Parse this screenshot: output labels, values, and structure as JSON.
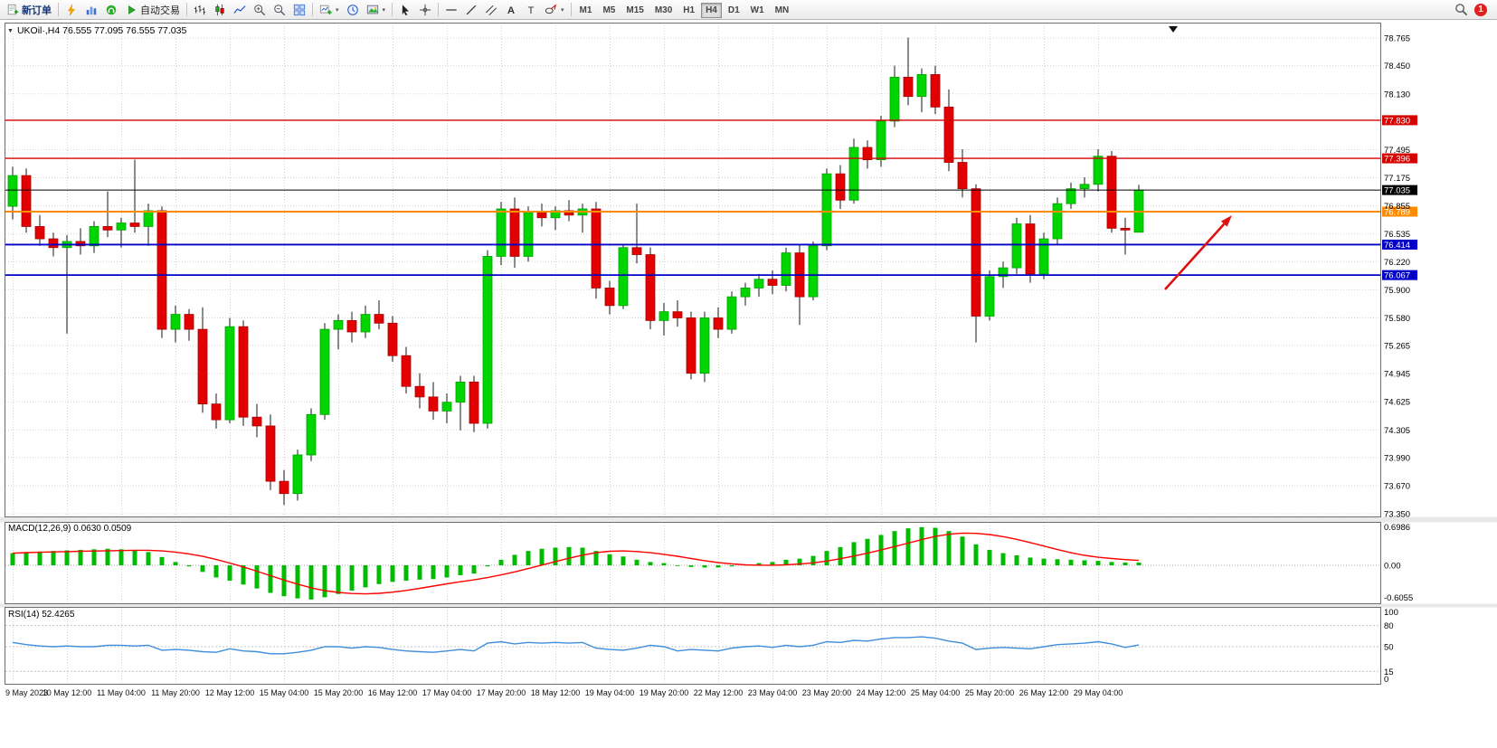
{
  "toolbar": {
    "new_order_label": "新订单",
    "auto_trading_label": "自动交易",
    "timeframes": [
      "M1",
      "M5",
      "M15",
      "M30",
      "H1",
      "H4",
      "D1",
      "W1",
      "MN"
    ],
    "active_timeframe": "H4",
    "notification_count": "1",
    "icons": {
      "new-order-icon": "document-plus",
      "lightning-icon": "bolt",
      "market-watch-icon": "blue-columns",
      "headset-icon": "green-circle",
      "auto-trading-icon": "play-triangle",
      "bar-chart-icon": "ohlc-bars",
      "candlestick-icon": "candles",
      "line-chart-icon": "polyline",
      "zoom-in-icon": "magnifier-plus",
      "zoom-out-icon": "magnifier-minus",
      "tile-windows-icon": "window-grid",
      "new-chart-icon": "chart-plus",
      "clock-icon": "clock",
      "template-icon": "picture",
      "cursor-icon": "pointer-arrow",
      "crosshair-icon": "cross",
      "hline-icon": "horizontal-line",
      "trendline-icon": "diagonal-line",
      "channel-icon": "parallel-lines",
      "text-icon": "A",
      "text-label-icon": "T",
      "shapes-icon": "ellipse",
      "search-icon": "magnifier",
      "one-click-expander-icon": "triangle-down",
      "chart-shift-icon": "triangle-down"
    }
  },
  "chart_header": {
    "symbol_info": "UKOil·,H4  76.555 77.095 76.555 77.035"
  },
  "indicators": {
    "macd_label": "MACD(12,26,9) 0.0630 0.0509",
    "macd_scale": [
      "0.6986",
      "0.00",
      "-0.6055"
    ],
    "rsi_label": "RSI(14) 52.4265",
    "rsi_scale": [
      "100",
      "80",
      "50",
      "15",
      "0"
    ]
  },
  "price_scale": {
    "ticks": [
      "78.765",
      "78.450",
      "78.130",
      "77.495",
      "77.175",
      "76.855",
      "76.535",
      "76.220",
      "75.900",
      "75.580",
      "75.265",
      "74.945",
      "74.625",
      "74.305",
      "73.990",
      "73.670",
      "73.350"
    ]
  },
  "time_axis": {
    "labels": [
      "9 May 2023",
      "10 May 12:00",
      "11 May 04:00",
      "11 May 20:00",
      "12 May 12:00",
      "15 May 04:00",
      "15 May 20:00",
      "16 May 12:00",
      "17 May 04:00",
      "17 May 20:00",
      "18 May 12:00",
      "19 May 04:00",
      "19 May 20:00",
      "22 May 12:00",
      "23 May 04:00",
      "23 May 20:00",
      "24 May 12:00",
      "25 May 04:00",
      "25 May 20:00",
      "26 May 12:00",
      "29 May 04:00"
    ],
    "bars_per_label": 4
  },
  "chart_data": {
    "type": "candlestick",
    "symbol": "UKOil",
    "timeframe": "H4",
    "current_ohlc": {
      "open": 76.555,
      "high": 77.095,
      "low": 76.555,
      "close": 77.035
    },
    "ylim": [
      73.33,
      78.91
    ],
    "ohlc": [
      [
        76.85,
        77.3,
        76.7,
        77.2
      ],
      [
        77.2,
        77.28,
        76.55,
        76.62
      ],
      [
        76.62,
        76.75,
        76.4,
        76.48
      ],
      [
        76.48,
        76.55,
        76.28,
        76.38
      ],
      [
        76.38,
        76.52,
        75.4,
        76.45
      ],
      [
        76.45,
        76.6,
        76.3,
        76.4
      ],
      [
        76.4,
        76.68,
        76.32,
        76.62
      ],
      [
        76.62,
        77.02,
        76.5,
        76.58
      ],
      [
        76.58,
        76.72,
        76.38,
        76.66
      ],
      [
        76.66,
        77.38,
        76.55,
        76.62
      ],
      [
        76.62,
        76.88,
        76.4,
        76.8
      ],
      [
        76.8,
        76.85,
        75.35,
        75.45
      ],
      [
        75.45,
        75.72,
        75.3,
        75.62
      ],
      [
        75.62,
        75.68,
        75.32,
        75.45
      ],
      [
        75.45,
        75.7,
        74.5,
        74.6
      ],
      [
        74.6,
        74.72,
        74.32,
        74.42
      ],
      [
        74.42,
        75.58,
        74.38,
        75.48
      ],
      [
        75.48,
        75.55,
        74.35,
        74.45
      ],
      [
        74.45,
        74.6,
        74.22,
        74.35
      ],
      [
        74.35,
        74.48,
        73.62,
        73.72
      ],
      [
        73.72,
        73.85,
        73.45,
        73.58
      ],
      [
        73.58,
        74.08,
        73.5,
        74.02
      ],
      [
        74.02,
        74.55,
        73.95,
        74.48
      ],
      [
        74.48,
        75.52,
        74.42,
        75.45
      ],
      [
        75.45,
        75.62,
        75.22,
        75.55
      ],
      [
        75.55,
        75.65,
        75.3,
        75.42
      ],
      [
        75.42,
        75.72,
        75.35,
        75.62
      ],
      [
        75.62,
        75.78,
        75.45,
        75.52
      ],
      [
        75.52,
        75.6,
        75.08,
        75.15
      ],
      [
        75.15,
        75.25,
        74.72,
        74.8
      ],
      [
        74.8,
        74.95,
        74.55,
        74.68
      ],
      [
        74.68,
        74.85,
        74.42,
        74.52
      ],
      [
        74.52,
        74.72,
        74.38,
        74.62
      ],
      [
        74.62,
        74.92,
        74.3,
        74.85
      ],
      [
        74.85,
        74.92,
        74.28,
        74.38
      ],
      [
        74.38,
        76.35,
        74.32,
        76.28
      ],
      [
        76.28,
        76.9,
        76.18,
        76.82
      ],
      [
        76.82,
        76.95,
        76.15,
        76.28
      ],
      [
        76.28,
        76.85,
        76.22,
        76.78
      ],
      [
        76.78,
        76.88,
        76.62,
        76.72
      ],
      [
        76.72,
        76.85,
        76.58,
        76.8
      ],
      [
        76.8,
        76.92,
        76.68,
        76.75
      ],
      [
        76.75,
        76.88,
        76.55,
        76.82
      ],
      [
        76.82,
        76.9,
        75.8,
        75.92
      ],
      [
        75.92,
        76.0,
        75.62,
        75.72
      ],
      [
        75.72,
        76.42,
        75.68,
        76.38
      ],
      [
        76.38,
        76.88,
        76.2,
        76.3
      ],
      [
        76.3,
        76.38,
        75.45,
        75.55
      ],
      [
        75.55,
        75.75,
        75.38,
        75.65
      ],
      [
        75.65,
        75.78,
        75.48,
        75.58
      ],
      [
        75.58,
        75.65,
        74.88,
        74.95
      ],
      [
        74.95,
        75.65,
        74.85,
        75.58
      ],
      [
        75.58,
        75.7,
        75.35,
        75.45
      ],
      [
        75.45,
        75.88,
        75.4,
        75.82
      ],
      [
        75.82,
        75.98,
        75.72,
        75.92
      ],
      [
        75.92,
        76.08,
        75.82,
        76.02
      ],
      [
        76.02,
        76.12,
        75.85,
        75.95
      ],
      [
        75.95,
        76.38,
        75.88,
        76.32
      ],
      [
        76.32,
        76.42,
        75.5,
        75.82
      ],
      [
        75.82,
        76.45,
        75.78,
        76.4
      ],
      [
        76.4,
        77.28,
        76.35,
        77.22
      ],
      [
        77.22,
        77.32,
        76.82,
        76.92
      ],
      [
        76.92,
        77.62,
        76.88,
        77.52
      ],
      [
        77.52,
        77.6,
        77.28,
        77.38
      ],
      [
        77.38,
        77.88,
        77.3,
        77.82
      ],
      [
        77.82,
        78.45,
        77.75,
        78.32
      ],
      [
        78.32,
        78.77,
        78.0,
        78.1
      ],
      [
        78.1,
        78.42,
        77.92,
        78.35
      ],
      [
        78.35,
        78.45,
        77.9,
        77.98
      ],
      [
        77.98,
        78.18,
        77.25,
        77.35
      ],
      [
        77.35,
        77.5,
        76.95,
        77.05
      ],
      [
        77.05,
        77.1,
        75.3,
        75.6
      ],
      [
        75.6,
        76.12,
        75.55,
        76.05
      ],
      [
        76.05,
        76.22,
        75.92,
        76.15
      ],
      [
        76.15,
        76.72,
        76.08,
        76.65
      ],
      [
        76.65,
        76.75,
        75.98,
        76.08
      ],
      [
        76.08,
        76.55,
        76.02,
        76.48
      ],
      [
        76.48,
        76.95,
        76.42,
        76.88
      ],
      [
        76.88,
        77.12,
        76.82,
        77.05
      ],
      [
        77.05,
        77.18,
        76.95,
        77.1
      ],
      [
        77.1,
        77.5,
        77.02,
        77.42
      ],
      [
        77.42,
        77.48,
        76.55,
        76.6
      ],
      [
        76.6,
        76.72,
        76.3,
        76.58
      ],
      [
        76.555,
        77.095,
        76.555,
        77.035
      ]
    ],
    "horizontal_lines": [
      {
        "price": 77.83,
        "label": "77.830",
        "color": "#d60000",
        "width": 1.4
      },
      {
        "price": 77.396,
        "label": "77.396",
        "color": "#d60000",
        "width": 1.4
      },
      {
        "price": 77.035,
        "label": "77.035",
        "color": "#000000",
        "width": 1.0
      },
      {
        "price": 76.789,
        "label": "76.789",
        "color": "#ff8c00",
        "width": 2.0
      },
      {
        "price": 76.414,
        "label": "76.414",
        "color": "#0000c8",
        "width": 1.8
      },
      {
        "price": 76.067,
        "label": "76.067",
        "color": "#0000c8",
        "width": 1.8
      }
    ],
    "macd": {
      "params": "12,26,9",
      "readout": [
        0.063,
        0.0509
      ],
      "scale_max": 0.6986,
      "scale_min": -0.6055,
      "values": [
        0.22,
        0.24,
        0.25,
        0.26,
        0.27,
        0.28,
        0.29,
        0.3,
        0.29,
        0.27,
        0.24,
        0.15,
        0.06,
        -0.02,
        -0.12,
        -0.22,
        -0.28,
        -0.35,
        -0.42,
        -0.5,
        -0.56,
        -0.6,
        -0.62,
        -0.58,
        -0.52,
        -0.46,
        -0.4,
        -0.34,
        -0.3,
        -0.28,
        -0.26,
        -0.25,
        -0.22,
        -0.18,
        -0.15,
        -0.02,
        0.1,
        0.19,
        0.26,
        0.3,
        0.32,
        0.33,
        0.32,
        0.26,
        0.2,
        0.16,
        0.1,
        0.06,
        0.04,
        0.0,
        -0.03,
        -0.04,
        -0.04,
        -0.02,
        0.01,
        0.04,
        0.06,
        0.1,
        0.12,
        0.17,
        0.26,
        0.33,
        0.42,
        0.48,
        0.55,
        0.62,
        0.67,
        0.69,
        0.68,
        0.62,
        0.52,
        0.38,
        0.28,
        0.22,
        0.18,
        0.14,
        0.12,
        0.11,
        0.1,
        0.09,
        0.08,
        0.06,
        0.05,
        0.05
      ]
    },
    "rsi": {
      "period": 14,
      "value": 52.4265,
      "levels": [
        80,
        50,
        15
      ],
      "values": [
        56,
        53,
        51,
        50,
        51,
        50,
        50,
        52,
        52,
        51,
        52,
        45,
        46,
        45,
        43,
        42,
        47,
        44,
        43,
        40,
        40,
        42,
        45,
        50,
        50,
        48,
        50,
        49,
        46,
        44,
        43,
        42,
        44,
        46,
        44,
        55,
        57,
        54,
        56,
        55,
        56,
        55,
        56,
        48,
        46,
        45,
        48,
        52,
        50,
        44,
        46,
        45,
        44,
        48,
        50,
        51,
        49,
        52,
        50,
        52,
        57,
        56,
        59,
        58,
        61,
        63,
        63,
        64,
        62,
        58,
        55,
        46,
        48,
        49,
        48,
        47,
        50,
        53,
        54,
        55,
        57,
        54,
        49,
        52.4
      ]
    },
    "colors": {
      "bull": "#00d500",
      "bull_edge": "#00a000",
      "bear": "#e30000",
      "bear_edge": "#a80000",
      "wick": "#1a1a1a",
      "grid": "#d4d4d4",
      "macd_hist": "#00bb00",
      "macd_signal": "#ff0000",
      "rsi_line": "#3f8edb",
      "panel_border": "#6e6e6e"
    },
    "annotation_arrow": {
      "from": [
        1288,
        320
      ],
      "to": [
        1362,
        238
      ],
      "color": "#e01010"
    }
  }
}
